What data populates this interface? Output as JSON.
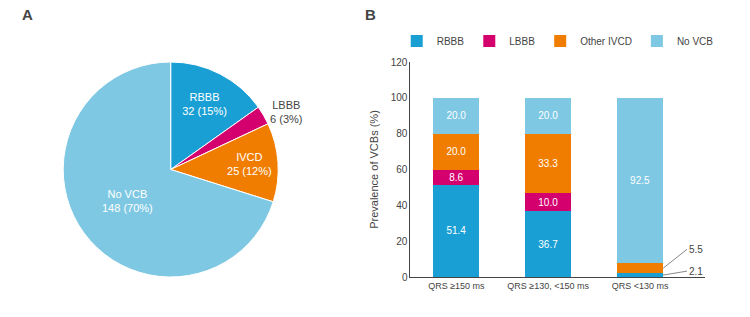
{
  "chart_data": [
    {
      "type": "pie",
      "title": "A",
      "categories": [
        "RBBB",
        "LBBB",
        "IVCD",
        "No VCB"
      ],
      "values": [
        32,
        6,
        25,
        148
      ],
      "value_labels": [
        "32 (15%)",
        "6 (3%)",
        "25 (12%)",
        "148 (70%)"
      ],
      "colors": [
        "#1a9fd4",
        "#d4006e",
        "#f07d00",
        "#7ec8e3"
      ],
      "data_labels": true
    },
    {
      "type": "bar",
      "title": "B",
      "categories": [
        "QRS ≥150 ms",
        "QRS ≥130, <150 ms",
        "QRS <130 ms"
      ],
      "series": [
        {
          "name": "RBBB",
          "color": "#1a9fd4",
          "values": [
            51.4,
            36.7,
            2.1
          ],
          "value_labels": [
            "51.4",
            "36.7",
            "2.1"
          ]
        },
        {
          "name": "LBBB",
          "color": "#d4006e",
          "values": [
            8.6,
            10.0,
            0.0
          ],
          "value_labels": [
            "8.6",
            "10.0",
            null
          ]
        },
        {
          "name": "Other IVCD",
          "color": "#f07d00",
          "values": [
            20.0,
            33.3,
            5.5
          ],
          "value_labels": [
            "20.0",
            "33.3",
            "5.5"
          ]
        },
        {
          "name": "No VCB",
          "color": "#7ec8e3",
          "values": [
            20.0,
            20.0,
            92.5
          ],
          "value_labels": [
            "20.0",
            "20.0",
            "92.5"
          ]
        }
      ],
      "ylabel": "Prevalence of VCBs (%)",
      "ylim": [
        0,
        120
      ],
      "yticks": [
        0,
        20,
        40,
        60,
        80,
        100,
        120
      ],
      "stacked": true,
      "data_labels": true,
      "legend": "top",
      "grid": false
    }
  ]
}
